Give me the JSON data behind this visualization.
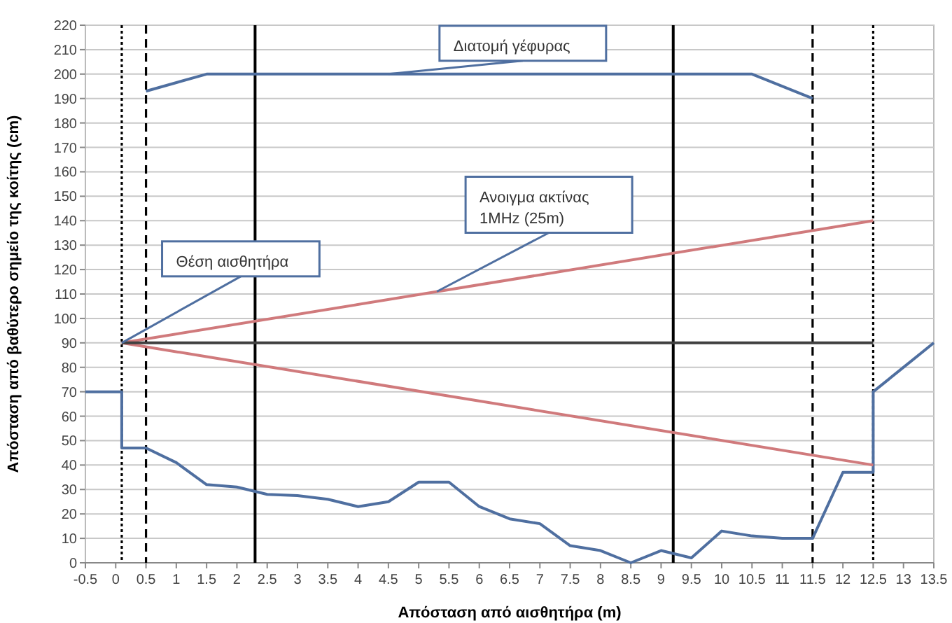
{
  "chart_data": {
    "type": "line",
    "xlabel": "Απόσταση από αισθητήρα (m)",
    "ylabel": "Απόσταση από βαθύτερο σημείο της κοίτης (cm)",
    "xlim": [
      -0.5,
      13.5
    ],
    "xticks": [
      -0.5,
      0,
      0.5,
      1,
      1.5,
      2,
      2.5,
      3,
      3.5,
      4,
      4.5,
      5,
      5.5,
      6,
      6.5,
      7,
      7.5,
      8,
      8.5,
      9,
      9.5,
      10,
      10.5,
      11,
      11.5,
      12,
      12.5,
      13,
      13.5
    ],
    "ylim": [
      0,
      220
    ],
    "yticks": [
      0,
      10,
      20,
      30,
      40,
      50,
      60,
      70,
      80,
      90,
      100,
      110,
      120,
      130,
      140,
      150,
      160,
      170,
      180,
      190,
      200,
      210,
      220
    ],
    "grid": "y",
    "marker": "none",
    "line_style": "solid",
    "series": [
      {
        "color": "#4f6fa0",
        "x": [
          -0.5,
          0.1,
          0.1,
          0.5,
          1,
          1.5,
          2,
          2.5,
          3,
          3.5,
          4,
          4.5,
          5,
          5.5,
          6,
          6.5,
          7,
          7.5,
          8,
          8.5,
          9,
          9.5,
          10,
          10.5,
          11,
          11.5,
          12,
          12.5,
          12.5,
          13.5
        ],
        "values": [
          70,
          70,
          47,
          47,
          41,
          32,
          31,
          28,
          27.5,
          26,
          23,
          25,
          33,
          33,
          23,
          18,
          16,
          7,
          5,
          0,
          5,
          2,
          13,
          11,
          10,
          10,
          37,
          37,
          70,
          90
        ]
      },
      {
        "color": "#4f6fa0",
        "x": [
          0.5,
          1.5,
          10.5,
          11.5
        ],
        "values": [
          193,
          200,
          200,
          190
        ]
      },
      {
        "color": "#d07a7c",
        "x": [
          0.1,
          12.5
        ],
        "values": [
          90,
          140
        ]
      },
      {
        "color": "#d07a7c",
        "x": [
          0.1,
          12.5
        ],
        "values": [
          90,
          40
        ]
      },
      {
        "color": "#404040",
        "x": [
          0.1,
          12.5
        ],
        "values": [
          90,
          90
        ]
      }
    ],
    "ref_lines": [
      {
        "axis": "x",
        "value": 0.1,
        "color": "#000000",
        "line_style": "dotted"
      },
      {
        "axis": "x",
        "value": 12.5,
        "color": "#000000",
        "line_style": "dotted"
      },
      {
        "axis": "x",
        "value": 0.5,
        "color": "#000000",
        "line_style": "dashed"
      },
      {
        "axis": "x",
        "value": 11.5,
        "color": "#000000",
        "line_style": "dashed"
      },
      {
        "axis": "x",
        "value": 2.3,
        "color": "#000000",
        "line_style": "solid"
      },
      {
        "axis": "x",
        "value": 9.2,
        "color": "#000000",
        "line_style": "solid"
      }
    ],
    "annotations": [
      {
        "text": "Θέση αισθητήρα",
        "x": 0.1,
        "y": 90
      },
      {
        "text": "Διατομή γέφυρας",
        "x": 4.5,
        "y": 200
      },
      {
        "text": "Ανοιγμα ακτίνας\n1MHz (25m)",
        "x": 5.3,
        "y": 111
      }
    ]
  }
}
